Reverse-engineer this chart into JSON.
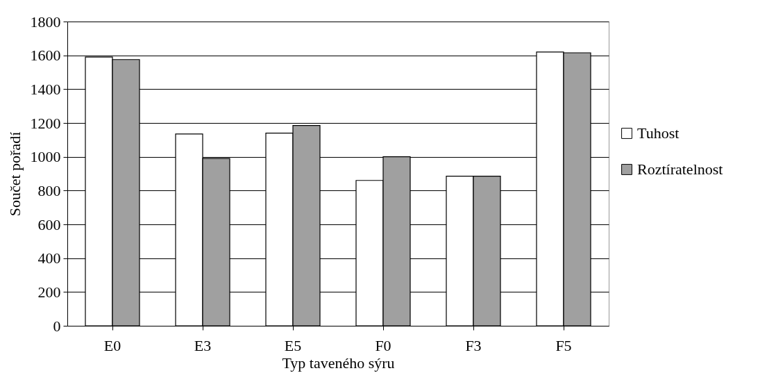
{
  "chart_data": {
    "type": "bar",
    "xlabel": "Typ taveného sýru",
    "ylabel": "Součet pořadí",
    "categories": [
      "E0",
      "E3",
      "E5",
      "F0",
      "F3",
      "F5"
    ],
    "series": [
      {
        "name": "Tuhost",
        "color": "#ffffff",
        "values": [
          1590,
          1135,
          1140,
          860,
          885,
          1620
        ]
      },
      {
        "name": "Roztíratelnost",
        "color": "#a0a0a0",
        "values": [
          1575,
          990,
          1185,
          1000,
          885,
          1615
        ]
      }
    ],
    "ylim": [
      0,
      1800
    ],
    "yticks": [
      0,
      200,
      400,
      600,
      800,
      1000,
      1200,
      1400,
      1600,
      1800
    ],
    "grid": "y",
    "legend": "right"
  }
}
